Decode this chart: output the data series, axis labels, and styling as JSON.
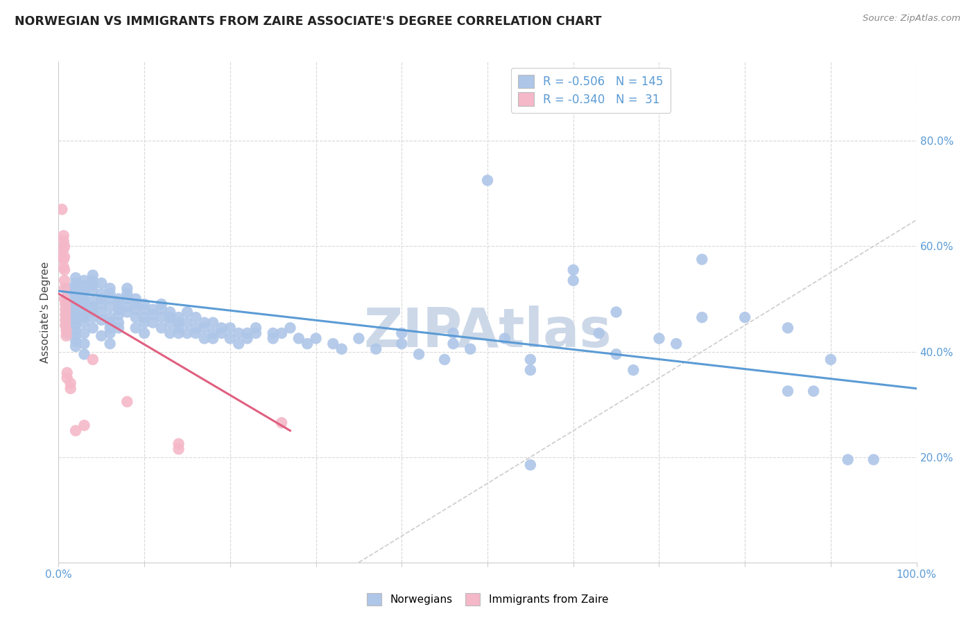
{
  "title": "NORWEGIAN VS IMMIGRANTS FROM ZAIRE ASSOCIATE'S DEGREE CORRELATION CHART",
  "source": "Source: ZipAtlas.com",
  "ylabel": "Associate's Degree",
  "right_yticks": [
    "80.0%",
    "60.0%",
    "40.0%",
    "20.0%"
  ],
  "right_ytick_vals": [
    0.8,
    0.6,
    0.4,
    0.2
  ],
  "norwegian_color": "#aec6e8",
  "zaire_color": "#f4b8c8",
  "norwegian_line_color": "#5b9bd5",
  "zaire_line_color": "#e06080",
  "diagonal_color": "#cccccc",
  "background_color": "#ffffff",
  "grid_color": "#d8d8d8",
  "watermark_text": "ZIPAtlas",
  "watermark_color": "#ccd8e8",
  "title_color": "#222222",
  "axis_label_color": "#5b9bd5",
  "tick_label_color": "#5b9bd5",
  "norwegian_points": [
    [
      0.01,
      0.505
    ],
    [
      0.01,
      0.49
    ],
    [
      0.01,
      0.475
    ],
    [
      0.01,
      0.465
    ],
    [
      0.01,
      0.455
    ],
    [
      0.01,
      0.445
    ],
    [
      0.01,
      0.435
    ],
    [
      0.01,
      0.52
    ],
    [
      0.02,
      0.54
    ],
    [
      0.02,
      0.53
    ],
    [
      0.02,
      0.52
    ],
    [
      0.02,
      0.51
    ],
    [
      0.02,
      0.5
    ],
    [
      0.02,
      0.49
    ],
    [
      0.02,
      0.48
    ],
    [
      0.02,
      0.47
    ],
    [
      0.02,
      0.46
    ],
    [
      0.02,
      0.45
    ],
    [
      0.02,
      0.44
    ],
    [
      0.02,
      0.43
    ],
    [
      0.02,
      0.42
    ],
    [
      0.02,
      0.41
    ],
    [
      0.03,
      0.535
    ],
    [
      0.03,
      0.525
    ],
    [
      0.03,
      0.515
    ],
    [
      0.03,
      0.505
    ],
    [
      0.03,
      0.495
    ],
    [
      0.03,
      0.485
    ],
    [
      0.03,
      0.475
    ],
    [
      0.03,
      0.465
    ],
    [
      0.03,
      0.455
    ],
    [
      0.03,
      0.435
    ],
    [
      0.03,
      0.415
    ],
    [
      0.03,
      0.395
    ],
    [
      0.04,
      0.545
    ],
    [
      0.04,
      0.535
    ],
    [
      0.04,
      0.525
    ],
    [
      0.04,
      0.515
    ],
    [
      0.04,
      0.495
    ],
    [
      0.04,
      0.485
    ],
    [
      0.04,
      0.475
    ],
    [
      0.04,
      0.465
    ],
    [
      0.04,
      0.445
    ],
    [
      0.05,
      0.53
    ],
    [
      0.05,
      0.51
    ],
    [
      0.05,
      0.5
    ],
    [
      0.05,
      0.49
    ],
    [
      0.05,
      0.475
    ],
    [
      0.05,
      0.46
    ],
    [
      0.05,
      0.43
    ],
    [
      0.06,
      0.52
    ],
    [
      0.06,
      0.51
    ],
    [
      0.06,
      0.5
    ],
    [
      0.06,
      0.485
    ],
    [
      0.06,
      0.465
    ],
    [
      0.06,
      0.455
    ],
    [
      0.06,
      0.445
    ],
    [
      0.06,
      0.435
    ],
    [
      0.06,
      0.415
    ],
    [
      0.07,
      0.5
    ],
    [
      0.07,
      0.49
    ],
    [
      0.07,
      0.48
    ],
    [
      0.07,
      0.47
    ],
    [
      0.07,
      0.455
    ],
    [
      0.07,
      0.445
    ],
    [
      0.08,
      0.52
    ],
    [
      0.08,
      0.51
    ],
    [
      0.08,
      0.5
    ],
    [
      0.08,
      0.485
    ],
    [
      0.08,
      0.475
    ],
    [
      0.09,
      0.5
    ],
    [
      0.09,
      0.49
    ],
    [
      0.09,
      0.48
    ],
    [
      0.09,
      0.465
    ],
    [
      0.09,
      0.445
    ],
    [
      0.1,
      0.49
    ],
    [
      0.1,
      0.48
    ],
    [
      0.1,
      0.465
    ],
    [
      0.1,
      0.455
    ],
    [
      0.1,
      0.435
    ],
    [
      0.11,
      0.48
    ],
    [
      0.11,
      0.47
    ],
    [
      0.11,
      0.455
    ],
    [
      0.12,
      0.49
    ],
    [
      0.12,
      0.48
    ],
    [
      0.12,
      0.465
    ],
    [
      0.12,
      0.445
    ],
    [
      0.13,
      0.475
    ],
    [
      0.13,
      0.465
    ],
    [
      0.13,
      0.455
    ],
    [
      0.13,
      0.435
    ],
    [
      0.14,
      0.465
    ],
    [
      0.14,
      0.455
    ],
    [
      0.14,
      0.445
    ],
    [
      0.14,
      0.435
    ],
    [
      0.15,
      0.475
    ],
    [
      0.15,
      0.455
    ],
    [
      0.15,
      0.435
    ],
    [
      0.16,
      0.465
    ],
    [
      0.16,
      0.445
    ],
    [
      0.16,
      0.435
    ],
    [
      0.17,
      0.455
    ],
    [
      0.17,
      0.445
    ],
    [
      0.17,
      0.425
    ],
    [
      0.18,
      0.455
    ],
    [
      0.18,
      0.435
    ],
    [
      0.18,
      0.425
    ],
    [
      0.19,
      0.445
    ],
    [
      0.19,
      0.435
    ],
    [
      0.2,
      0.445
    ],
    [
      0.2,
      0.425
    ],
    [
      0.21,
      0.435
    ],
    [
      0.21,
      0.415
    ],
    [
      0.22,
      0.435
    ],
    [
      0.22,
      0.425
    ],
    [
      0.23,
      0.445
    ],
    [
      0.23,
      0.435
    ],
    [
      0.25,
      0.435
    ],
    [
      0.25,
      0.425
    ],
    [
      0.26,
      0.435
    ],
    [
      0.27,
      0.445
    ],
    [
      0.28,
      0.425
    ],
    [
      0.29,
      0.415
    ],
    [
      0.3,
      0.425
    ],
    [
      0.32,
      0.415
    ],
    [
      0.33,
      0.405
    ],
    [
      0.35,
      0.425
    ],
    [
      0.37,
      0.405
    ],
    [
      0.4,
      0.435
    ],
    [
      0.4,
      0.415
    ],
    [
      0.42,
      0.395
    ],
    [
      0.45,
      0.385
    ],
    [
      0.46,
      0.435
    ],
    [
      0.46,
      0.415
    ],
    [
      0.48,
      0.405
    ],
    [
      0.5,
      0.725
    ],
    [
      0.52,
      0.425
    ],
    [
      0.55,
      0.385
    ],
    [
      0.55,
      0.365
    ],
    [
      0.55,
      0.185
    ],
    [
      0.6,
      0.555
    ],
    [
      0.6,
      0.535
    ],
    [
      0.63,
      0.435
    ],
    [
      0.65,
      0.475
    ],
    [
      0.65,
      0.395
    ],
    [
      0.67,
      0.365
    ],
    [
      0.7,
      0.425
    ],
    [
      0.72,
      0.415
    ],
    [
      0.75,
      0.575
    ],
    [
      0.75,
      0.465
    ],
    [
      0.8,
      0.465
    ],
    [
      0.85,
      0.445
    ],
    [
      0.85,
      0.325
    ],
    [
      0.88,
      0.325
    ],
    [
      0.9,
      0.385
    ],
    [
      0.92,
      0.195
    ],
    [
      0.95,
      0.195
    ]
  ],
  "zaire_points": [
    [
      0.004,
      0.67
    ],
    [
      0.004,
      0.58
    ],
    [
      0.006,
      0.62
    ],
    [
      0.006,
      0.61
    ],
    [
      0.006,
      0.595
    ],
    [
      0.006,
      0.575
    ],
    [
      0.006,
      0.56
    ],
    [
      0.007,
      0.6
    ],
    [
      0.007,
      0.58
    ],
    [
      0.007,
      0.555
    ],
    [
      0.007,
      0.535
    ],
    [
      0.007,
      0.52
    ],
    [
      0.007,
      0.5
    ],
    [
      0.008,
      0.49
    ],
    [
      0.008,
      0.48
    ],
    [
      0.008,
      0.47
    ],
    [
      0.008,
      0.46
    ],
    [
      0.008,
      0.45
    ],
    [
      0.009,
      0.44
    ],
    [
      0.009,
      0.43
    ],
    [
      0.01,
      0.36
    ],
    [
      0.01,
      0.35
    ],
    [
      0.014,
      0.34
    ],
    [
      0.014,
      0.33
    ],
    [
      0.02,
      0.25
    ],
    [
      0.03,
      0.26
    ],
    [
      0.04,
      0.385
    ],
    [
      0.08,
      0.305
    ],
    [
      0.14,
      0.225
    ],
    [
      0.14,
      0.215
    ],
    [
      0.26,
      0.265
    ]
  ],
  "norwegian_line": {
    "x0": 0.0,
    "y0": 0.515,
    "x1": 1.0,
    "y1": 0.33
  },
  "zaire_line": {
    "x0": 0.0,
    "y0": 0.51,
    "x1": 0.27,
    "y1": 0.25
  },
  "diagonal_line": {
    "x0": 0.35,
    "y0": 0.0,
    "x1": 1.0,
    "y1": 0.65
  },
  "xlim": [
    0.0,
    1.0
  ],
  "ylim": [
    0.0,
    0.95
  ],
  "xgrid_vals": [
    0.1,
    0.2,
    0.3,
    0.4,
    0.5,
    0.6,
    0.7,
    0.8,
    0.9,
    1.0
  ],
  "ygrid_vals": [
    0.2,
    0.4,
    0.6,
    0.8
  ]
}
